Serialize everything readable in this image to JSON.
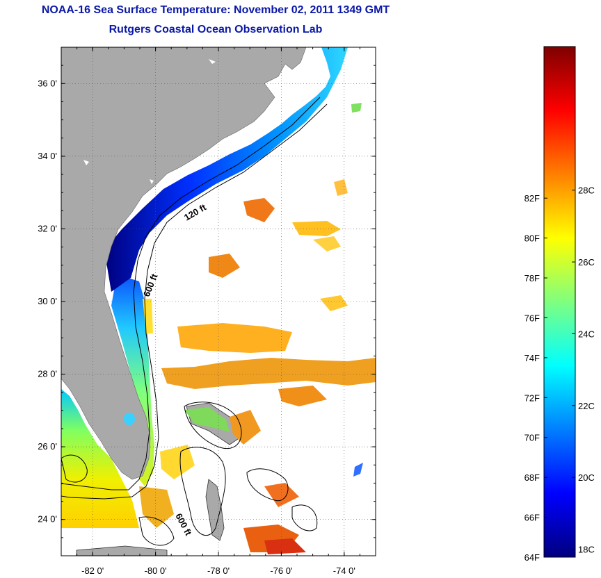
{
  "title_line1": "NOAA-16 Sea Surface Temperature:  November 02, 2011 1349 GMT",
  "title_line2": "Rutgers Coastal Ocean Observation Lab",
  "map": {
    "lon_range": [
      -83,
      -73
    ],
    "lat_range": [
      23,
      37
    ],
    "lon_ticks": [
      {
        "value": -82,
        "label": "-82 0'"
      },
      {
        "value": -80,
        "label": "-80 0'"
      },
      {
        "value": -78,
        "label": "-78 0'"
      },
      {
        "value": -76,
        "label": "-76 0'"
      },
      {
        "value": -74,
        "label": "-74 0'"
      }
    ],
    "lat_ticks": [
      {
        "value": 24,
        "label": "24 0'"
      },
      {
        "value": 26,
        "label": "26 0'"
      },
      {
        "value": 28,
        "label": "28 0'"
      },
      {
        "value": 30,
        "label": "30 0'"
      },
      {
        "value": 32,
        "label": "32 0'"
      },
      {
        "value": 34,
        "label": "34 0'"
      },
      {
        "value": 36,
        "label": "36 0'"
      }
    ],
    "grid": "dotted",
    "contour_labels": [
      "120 ft",
      "600 ft",
      "600 ft"
    ],
    "colors": {
      "land": "#a9a9a9",
      "ocean_no_data": "#ffffff"
    }
  },
  "colorbar": {
    "range_f": [
      64,
      89.6
    ],
    "fahrenheit_labels": [
      {
        "value": 64,
        "label": "64F"
      },
      {
        "value": 66,
        "label": "66F"
      },
      {
        "value": 68,
        "label": "68F"
      },
      {
        "value": 70,
        "label": "70F"
      },
      {
        "value": 72,
        "label": "72F"
      },
      {
        "value": 74,
        "label": "74F"
      },
      {
        "value": 76,
        "label": "76F"
      },
      {
        "value": 78,
        "label": "78F"
      },
      {
        "value": 80,
        "label": "80F"
      },
      {
        "value": 82,
        "label": "82F"
      }
    ],
    "celsius_labels": [
      {
        "value": 18,
        "label": "18C"
      },
      {
        "value": 20,
        "label": "20C"
      },
      {
        "value": 22,
        "label": "22C"
      },
      {
        "value": 24,
        "label": "24C"
      },
      {
        "value": 26,
        "label": "26C"
      },
      {
        "value": 28,
        "label": "28C"
      }
    ],
    "colormap": [
      "#00007f",
      "#0000ff",
      "#007fff",
      "#00ffff",
      "#7fff7f",
      "#ffff00",
      "#ff7f00",
      "#ff0000",
      "#7f0000"
    ]
  }
}
